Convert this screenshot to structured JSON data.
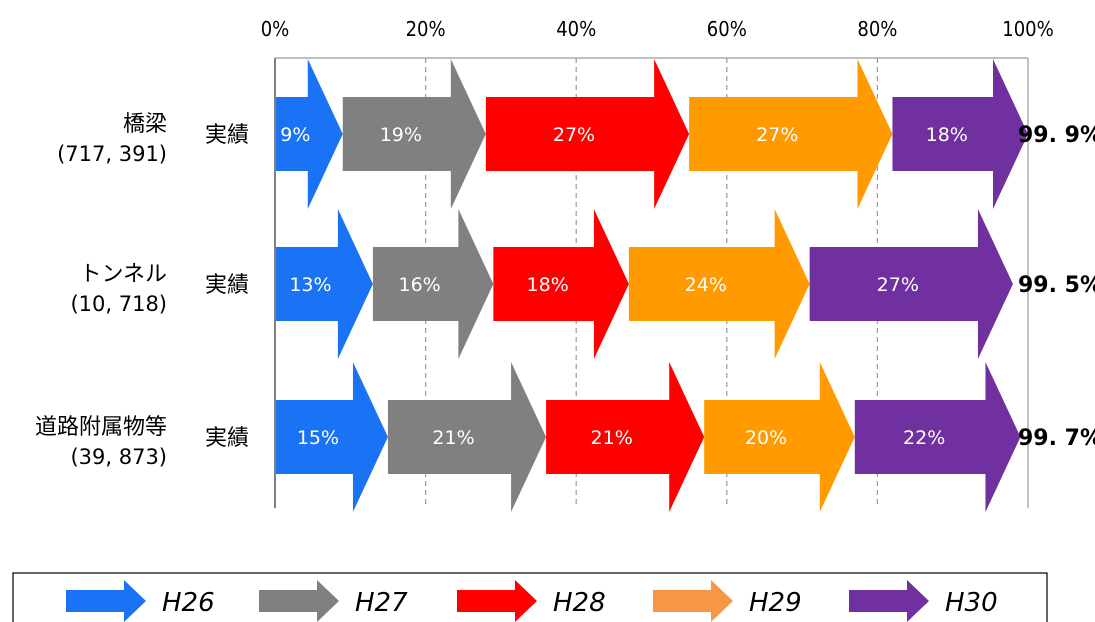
{
  "chart_data": {
    "type": "bar",
    "stacked": true,
    "orientation": "horizontal",
    "x_tick_labels": [
      "0%",
      "20%",
      "40%",
      "60%",
      "80%",
      "100%"
    ],
    "xlim": [
      0,
      100
    ],
    "grid": "vertical dashed",
    "legend_position": "bottom",
    "rows": [
      {
        "name": "橋梁",
        "sub": "(717, 391)",
        "label": "実績",
        "total": "99. 9%"
      },
      {
        "name": "トンネル",
        "sub": "(10, 718)",
        "label": "実績",
        "total": "99. 5%"
      },
      {
        "name": "道路附属物等",
        "sub": "(39, 873)",
        "label": "実績",
        "total": "99. 7%"
      }
    ],
    "series": [
      {
        "name": "H26",
        "color": "#1a73f5",
        "values": [
          9,
          13,
          15
        ],
        "labels": [
          "9%",
          "13%",
          "15%"
        ]
      },
      {
        "name": "H27",
        "color": "#808080",
        "values": [
          19,
          16,
          21
        ],
        "labels": [
          "19%",
          "16%",
          "21%"
        ]
      },
      {
        "name": "H28",
        "color": "#ff0000",
        "values": [
          27,
          18,
          21
        ],
        "labels": [
          "27%",
          "18%",
          "21%"
        ]
      },
      {
        "name": "H29",
        "color": "#ff9a00",
        "values": [
          27,
          24,
          20
        ],
        "labels": [
          "27%",
          "24%",
          "20%"
        ]
      },
      {
        "name": "H30",
        "color": "#7030a0",
        "values": [
          18,
          27,
          22
        ],
        "labels": [
          "18%",
          "27%",
          "22%"
        ]
      }
    ],
    "legend": [
      {
        "name": "H26",
        "color": "#1a73f5"
      },
      {
        "name": "H27",
        "color": "#808080"
      },
      {
        "name": "H28",
        "color": "#ff0000"
      },
      {
        "name": "H29",
        "color": "#f79646"
      },
      {
        "name": "H30",
        "color": "#7030a0"
      }
    ]
  }
}
